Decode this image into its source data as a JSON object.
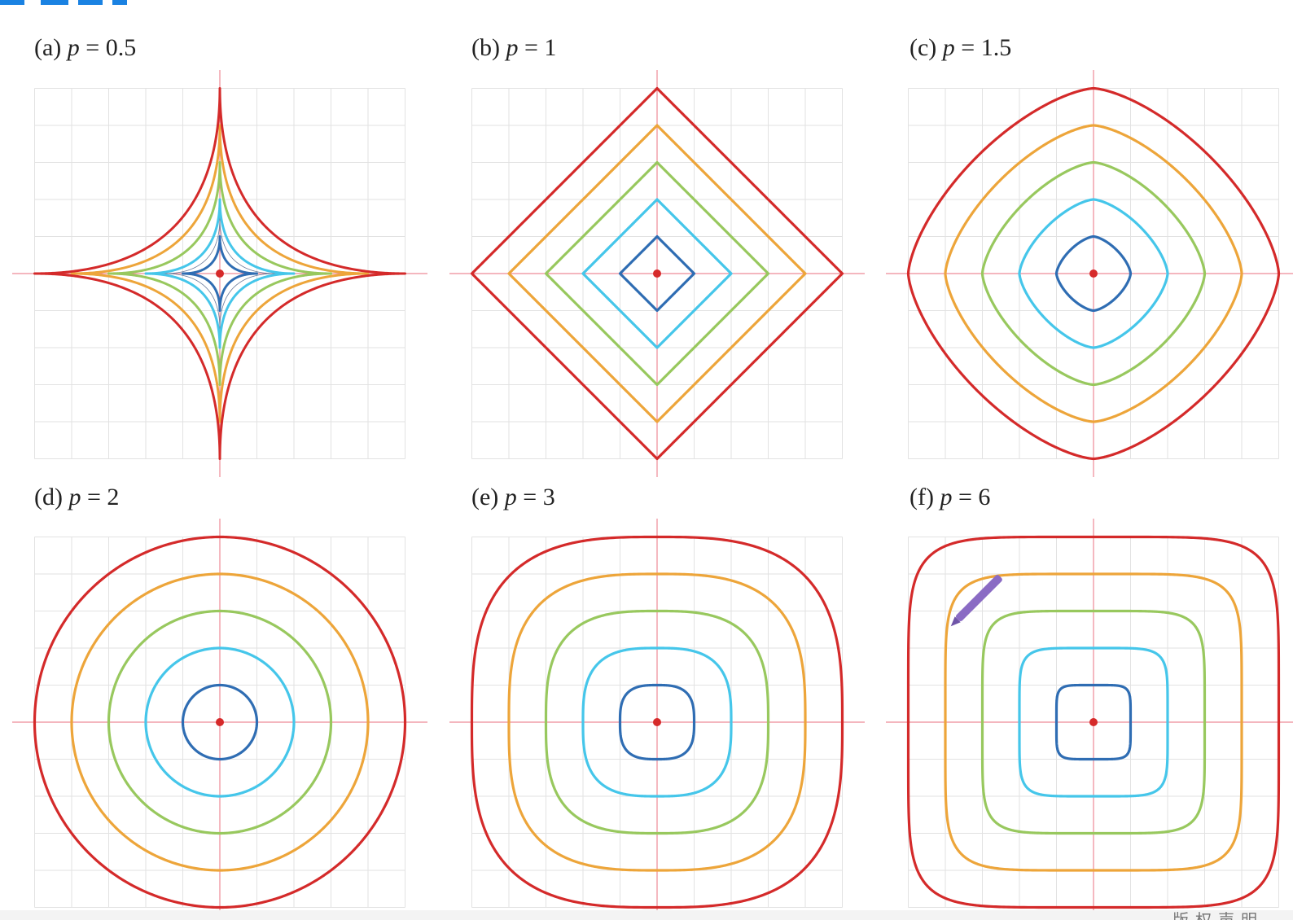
{
  "colors": {
    "grid": "#e2e2e2",
    "axis": "#ee8a96",
    "center_dot": "#d62a2a",
    "levels": [
      "#2f6db3",
      "#45c6ea",
      "#98c85e",
      "#eda53a",
      "#d42a2a"
    ],
    "astroid_inner": "#6a7a9a",
    "pen": "#8a6bc4",
    "top_fragment": "#1a82e2"
  },
  "panels": [
    {
      "id": "a",
      "prefix": "(a) ",
      "var": "p",
      "eq": " = 0.5",
      "p": 0.5
    },
    {
      "id": "b",
      "prefix": "(b) ",
      "var": "p",
      "eq": " = 1",
      "p": 1
    },
    {
      "id": "c",
      "prefix": "(c) ",
      "var": "p",
      "eq": " = 1.5",
      "p": 1.5
    },
    {
      "id": "d",
      "prefix": "(d) ",
      "var": "p",
      "eq": " = 2",
      "p": 2
    },
    {
      "id": "e",
      "prefix": "(e) ",
      "var": "p",
      "eq": " = 3",
      "p": 3
    },
    {
      "id": "f",
      "prefix": "(f) ",
      "var": "p",
      "eq": " = 6",
      "p": 6
    }
  ],
  "levels": [
    1,
    2,
    3,
    4,
    5
  ],
  "astroid_extra_levels": [
    0.3,
    0.6
  ],
  "watermark": "版权声明",
  "pen_icon": "pen-icon"
}
